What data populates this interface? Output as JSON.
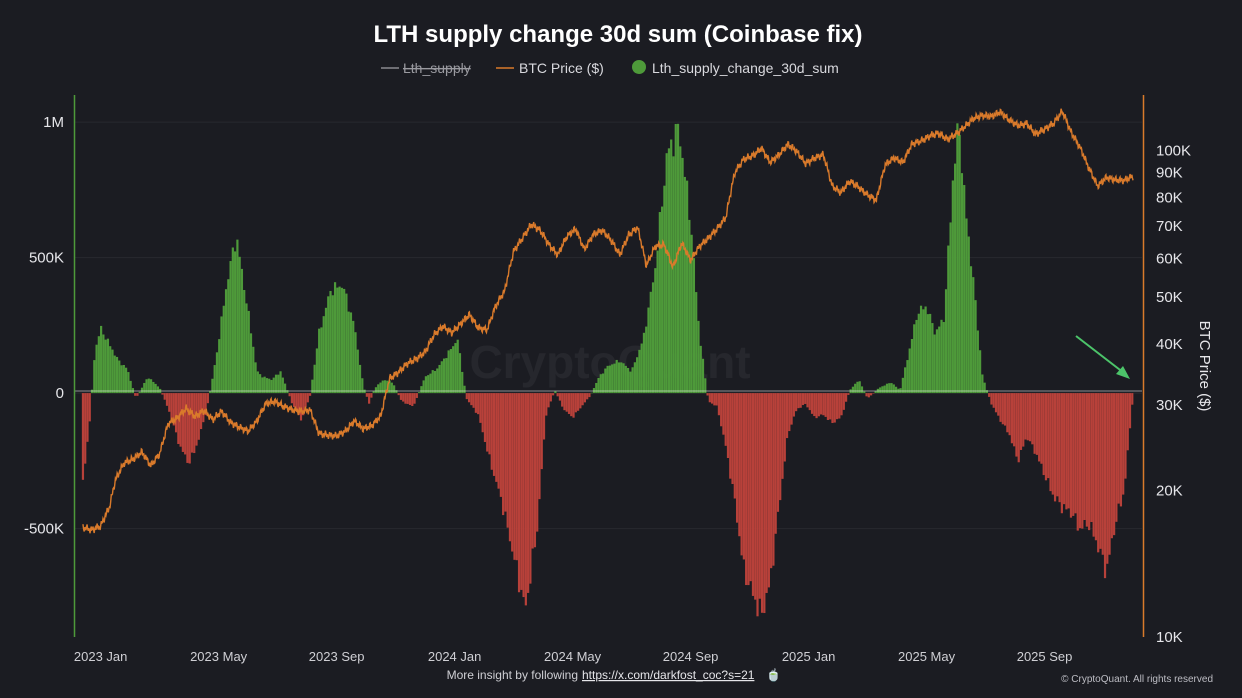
{
  "chart_data": {
    "type": "bar",
    "title": "LTH supply change 30d sum (Coinbase fix)",
    "legend": [
      {
        "name": "Lth_supply",
        "style": "line-struck",
        "color": "#8a8a90"
      },
      {
        "name": "BTC Price ($)",
        "style": "line",
        "color": "#d97a2b"
      },
      {
        "name": "Lth_supply_change_30d_sum",
        "style": "dot",
        "color": "#4e9a3a"
      }
    ],
    "ylabel_left": "",
    "ylabel_right": "BTC Price ($)",
    "ylim_left": [
      -900000,
      1100000
    ],
    "yticks_left": [
      {
        "value": 1000000,
        "label": "1M"
      },
      {
        "value": 500000,
        "label": "500K"
      },
      {
        "value": 0,
        "label": "0"
      },
      {
        "value": -500000,
        "label": "-500K"
      }
    ],
    "ylim_right_log": [
      10000,
      130000
    ],
    "yticks_right": [
      {
        "value": 100000,
        "label": "100K"
      },
      {
        "value": 90000,
        "label": "90K"
      },
      {
        "value": 80000,
        "label": "80K"
      },
      {
        "value": 70000,
        "label": "70K"
      },
      {
        "value": 60000,
        "label": "60K"
      },
      {
        "value": 50000,
        "label": "50K"
      },
      {
        "value": 40000,
        "label": "40K"
      },
      {
        "value": 30000,
        "label": "30K"
      },
      {
        "value": 20000,
        "label": "20K"
      },
      {
        "value": 10000,
        "label": "10K"
      }
    ],
    "x_range_months": [
      -0.7,
      35.1
    ],
    "xticks": [
      {
        "month": 0,
        "label": "2023 Jan"
      },
      {
        "month": 4,
        "label": "2023 May"
      },
      {
        "month": 8,
        "label": "2023 Sep"
      },
      {
        "month": 12,
        "label": "2024 Jan"
      },
      {
        "month": 16,
        "label": "2024 May"
      },
      {
        "month": 20,
        "label": "2024 Sep"
      },
      {
        "month": 24,
        "label": "2025 Jan"
      },
      {
        "month": 28,
        "label": "2025 May"
      },
      {
        "month": 32,
        "label": "2025 Sep"
      }
    ],
    "supply_change_keypoints": {
      "month": [
        -0.6,
        -0.4,
        -0.2,
        0.0,
        0.3,
        0.6,
        0.9,
        1.2,
        1.6,
        2.0,
        2.3,
        2.7,
        3.0,
        3.3,
        3.6,
        3.9,
        4.3,
        4.6,
        5.0,
        5.3,
        5.5,
        5.8,
        6.1,
        6.5,
        6.8,
        7.1,
        7.4,
        7.8,
        8.2,
        8.6,
        8.9,
        9.1,
        9.3,
        9.6,
        9.9,
        10.2,
        10.6,
        11.0,
        11.4,
        11.8,
        12.1,
        12.4,
        12.8,
        13.2,
        13.6,
        14.0,
        14.4,
        14.8,
        15.1,
        15.4,
        15.7,
        16.0,
        16.3,
        16.6,
        16.9,
        17.2,
        17.6,
        18.0,
        18.4,
        18.8,
        19.2,
        19.6,
        20.0,
        20.3,
        20.6,
        20.9,
        21.2,
        21.5,
        21.8,
        22.1,
        22.4,
        22.7,
        23.0,
        23.3,
        23.6,
        23.9,
        24.2,
        24.5,
        24.8,
        25.1,
        25.4,
        25.7,
        26.0,
        26.4,
        26.8,
        27.1,
        27.4,
        27.7,
        28.0,
        28.3,
        28.6,
        28.9,
        29.1,
        29.3,
        29.6,
        29.9,
        30.2,
        30.5,
        30.8,
        31.1,
        31.4,
        31.7,
        32.0,
        32.3,
        32.6,
        32.9,
        33.2,
        33.5,
        33.8,
        34.1,
        34.4,
        34.7,
        35.0
      ],
      "value": [
        -320000,
        -150000,
        150000,
        240000,
        180000,
        120000,
        90000,
        -20000,
        60000,
        20000,
        -60000,
        -200000,
        -260000,
        -180000,
        -60000,
        120000,
        420000,
        580000,
        300000,
        80000,
        60000,
        50000,
        80000,
        -40000,
        -100000,
        -10000,
        220000,
        380000,
        400000,
        250000,
        30000,
        -40000,
        20000,
        50000,
        40000,
        -30000,
        -50000,
        60000,
        90000,
        150000,
        200000,
        -20000,
        -80000,
        -250000,
        -400000,
        -600000,
        -800000,
        -500000,
        -80000,
        10000,
        -60000,
        -90000,
        -50000,
        -10000,
        60000,
        100000,
        120000,
        80000,
        200000,
        460000,
        880000,
        980000,
        640000,
        220000,
        -30000,
        -50000,
        -200000,
        -400000,
        -650000,
        -740000,
        -820000,
        -700000,
        -420000,
        -150000,
        -60000,
        -40000,
        -90000,
        -80000,
        -110000,
        -90000,
        10000,
        50000,
        -20000,
        20000,
        40000,
        10000,
        150000,
        300000,
        320000,
        220000,
        280000,
        800000,
        1000000,
        700000,
        400000,
        60000,
        -40000,
        -100000,
        -150000,
        -250000,
        -160000,
        -220000,
        -300000,
        -380000,
        -420000,
        -440000,
        -500000,
        -480000,
        -560000,
        -660000,
        -480000,
        -360000,
        -10000
      ]
    },
    "btc_price_keypoints": {
      "month": [
        -0.6,
        -0.3,
        0.0,
        0.3,
        0.5,
        0.8,
        1.1,
        1.4,
        1.7,
        2.0,
        2.3,
        2.6,
        2.9,
        3.2,
        3.5,
        3.8,
        4.1,
        4.4,
        4.7,
        5.0,
        5.3,
        5.6,
        5.9,
        6.2,
        6.5,
        6.8,
        7.1,
        7.4,
        7.7,
        8.0,
        8.3,
        8.6,
        8.9,
        9.2,
        9.5,
        9.8,
        10.1,
        10.4,
        10.7,
        11.0,
        11.3,
        11.6,
        11.9,
        12.2,
        12.5,
        12.8,
        13.1,
        13.4,
        13.7,
        14.0,
        14.3,
        14.6,
        14.9,
        15.2,
        15.5,
        15.8,
        16.1,
        16.4,
        16.7,
        17.0,
        17.3,
        17.6,
        17.9,
        18.2,
        18.5,
        18.8,
        19.1,
        19.4,
        19.7,
        20.0,
        20.3,
        20.6,
        20.9,
        21.2,
        21.5,
        21.8,
        22.1,
        22.4,
        22.7,
        23.0,
        23.3,
        23.6,
        23.9,
        24.2,
        24.5,
        24.8,
        25.1,
        25.4,
        25.7,
        26.0,
        26.3,
        26.6,
        26.9,
        27.2,
        27.5,
        27.8,
        28.1,
        28.4,
        28.7,
        29.0,
        29.3,
        29.6,
        29.9,
        30.2,
        30.5,
        30.8,
        31.1,
        31.4,
        31.7,
        32.0,
        32.3,
        32.6,
        32.9,
        33.2,
        33.5,
        33.8,
        34.1,
        34.4,
        34.7,
        35.0
      ],
      "price": [
        16800,
        16600,
        16900,
        18500,
        21000,
        22800,
        23200,
        24000,
        22500,
        23800,
        27500,
        28200,
        29500,
        28400,
        29200,
        28000,
        29100,
        27600,
        27000,
        26500,
        27800,
        30200,
        30500,
        29800,
        29300,
        29100,
        29300,
        26200,
        26000,
        25900,
        26500,
        27800,
        26800,
        27200,
        28500,
        34000,
        35000,
        36500,
        37300,
        38500,
        41800,
        43500,
        42200,
        44000,
        46000,
        43200,
        42800,
        48000,
        51500,
        62000,
        66000,
        70500,
        68500,
        64000,
        61000,
        66500,
        69000,
        62500,
        67200,
        68500,
        65500,
        61000,
        67000,
        69500,
        58000,
        63500,
        64000,
        57500,
        64500,
        59500,
        63500,
        66000,
        69000,
        73000,
        90000,
        96000,
        97500,
        101000,
        94500,
        98000,
        103000,
        99500,
        94000,
        96500,
        98000,
        84500,
        82000,
        86500,
        84000,
        81000,
        79000,
        93500,
        96500,
        94500,
        103000,
        104500,
        107000,
        108500,
        105500,
        108000,
        112000,
        116500,
        118000,
        117500,
        120000,
        115500,
        112500,
        113500,
        108000,
        110500,
        113500,
        120500,
        109000,
        101500,
        92000,
        84500,
        88000,
        87000,
        86800,
        88500
      ]
    }
  },
  "watermark": "CryptoQuant",
  "footer": {
    "text": "More insight by following",
    "link": "https://x.com/darkfost_coc?s=21",
    "emoji": "🍵",
    "credit": "© CryptoQuant. All rights reserved"
  }
}
